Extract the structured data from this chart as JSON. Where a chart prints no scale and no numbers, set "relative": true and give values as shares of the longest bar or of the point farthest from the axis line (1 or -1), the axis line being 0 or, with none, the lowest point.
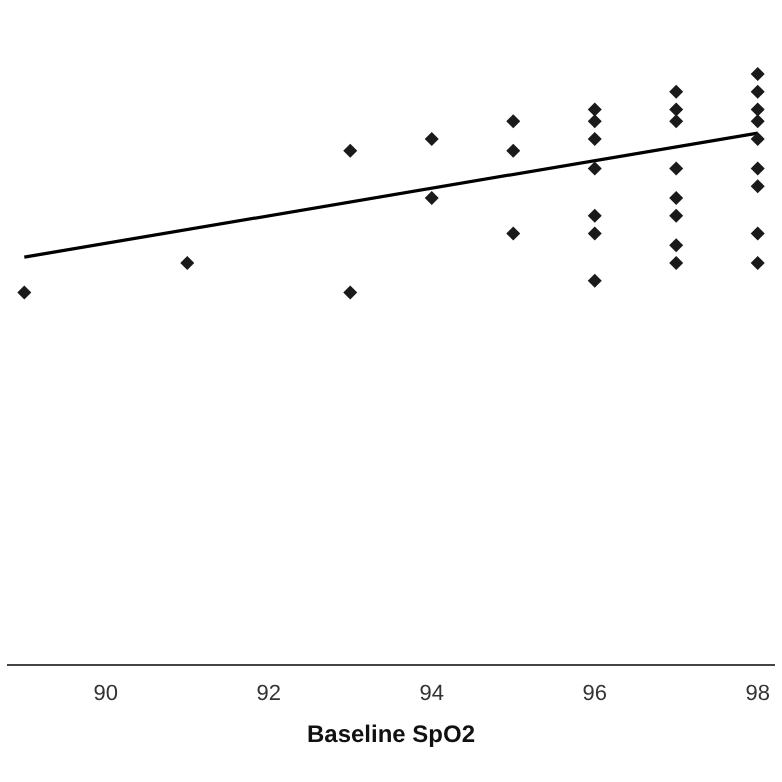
{
  "chart_data": {
    "type": "scatter",
    "xlabel": "Baseline SpO2",
    "relative": true,
    "marker": "diamond",
    "grid": false,
    "legend": false,
    "tick_labels": "x",
    "xlim": [
      88.8,
      98.2
    ],
    "xticks": [
      90,
      92,
      94,
      96,
      98
    ],
    "series": [
      {
        "color": "#1a1a1a",
        "x": [
          89,
          91,
          93,
          93,
          94,
          94,
          95,
          95,
          95,
          96,
          96,
          96,
          96,
          96,
          96,
          96,
          97,
          97,
          97,
          97,
          97,
          97,
          97,
          97,
          98,
          98,
          98,
          98,
          98,
          98,
          98,
          98,
          98
        ],
        "values": [
          0.63,
          0.68,
          0.87,
          0.63,
          0.89,
          0.79,
          0.92,
          0.87,
          0.73,
          0.94,
          0.92,
          0.89,
          0.84,
          0.76,
          0.73,
          0.65,
          0.97,
          0.94,
          0.92,
          0.84,
          0.79,
          0.76,
          0.71,
          0.68,
          1,
          0.97,
          0.94,
          0.92,
          0.89,
          0.84,
          0.81,
          0.73,
          0.68
        ]
      },
      {
        "type": "line",
        "color": "#000000",
        "marker": "none",
        "x": [
          89,
          98
        ],
        "values": [
          0.69,
          0.9
        ]
      }
    ]
  }
}
